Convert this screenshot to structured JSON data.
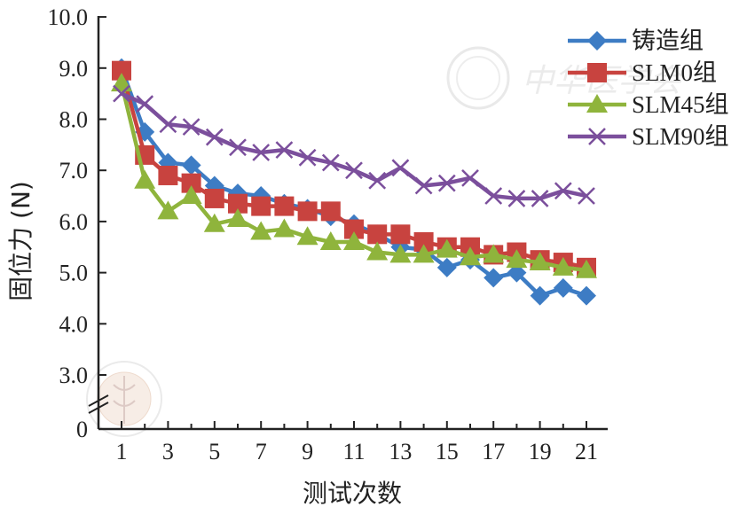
{
  "chart_data": {
    "type": "line",
    "xlabel": "测试次数",
    "ylabel": "固位力 (N)",
    "ylim": [
      0,
      10
    ],
    "yticks": [
      "10.0",
      "9.0",
      "8.0",
      "7.0",
      "6.0",
      "5.0",
      "4.0",
      "3.0",
      "0"
    ],
    "xticks": [
      "1",
      "3",
      "5",
      "7",
      "9",
      "11",
      "13",
      "15",
      "17",
      "19",
      "21"
    ],
    "axis_break": "y between 0 and 3.0",
    "legend_position": "top-right",
    "grid": false,
    "x": [
      1,
      2,
      3,
      4,
      5,
      6,
      7,
      8,
      9,
      10,
      11,
      12,
      13,
      14,
      15,
      16,
      17,
      18,
      19,
      20,
      21
    ],
    "series": [
      {
        "name": "铸造组",
        "color": "#3d7cc4",
        "marker": "diamond",
        "values": [
          9.0,
          7.75,
          7.15,
          7.1,
          6.7,
          6.55,
          6.5,
          6.35,
          6.25,
          6.1,
          5.95,
          5.75,
          5.5,
          5.45,
          5.1,
          5.25,
          4.9,
          5.0,
          4.55,
          4.7,
          4.55
        ]
      },
      {
        "name": "SLM0组",
        "color": "#c8433f",
        "marker": "square",
        "values": [
          8.95,
          7.3,
          6.9,
          6.75,
          6.45,
          6.35,
          6.3,
          6.3,
          6.2,
          6.2,
          5.85,
          5.75,
          5.75,
          5.6,
          5.5,
          5.5,
          5.35,
          5.4,
          5.25,
          5.2,
          5.1
        ]
      },
      {
        "name": "SLM45组",
        "color": "#8fb43c",
        "marker": "triangle",
        "values": [
          8.7,
          6.8,
          6.2,
          6.5,
          5.95,
          6.05,
          5.8,
          5.85,
          5.7,
          5.6,
          5.6,
          5.4,
          5.35,
          5.35,
          5.45,
          5.3,
          5.35,
          5.25,
          5.2,
          5.1,
          5.05
        ]
      },
      {
        "name": "SLM90组",
        "color": "#7b4f9c",
        "marker": "x",
        "values": [
          8.5,
          8.3,
          7.9,
          7.85,
          7.65,
          7.45,
          7.35,
          7.4,
          7.25,
          7.15,
          7.0,
          6.8,
          7.05,
          6.7,
          6.75,
          6.85,
          6.5,
          6.45,
          6.45,
          6.6,
          6.5
        ]
      }
    ]
  },
  "watermark": {
    "text": "中华医学会",
    "seal_text": "CHINESE MEDICAL ASSOCIATION"
  }
}
